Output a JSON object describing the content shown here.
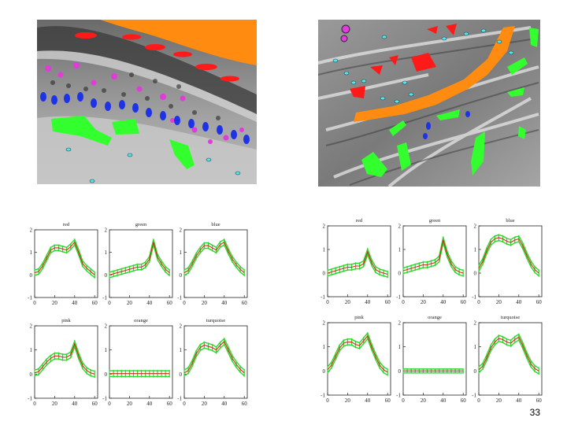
{
  "page": {
    "number": "33"
  },
  "figures": {
    "left_micrograph": {
      "label_colors": [
        "red",
        "pink",
        "blue",
        "green",
        "turquoise",
        "orange"
      ]
    },
    "right_micrograph": {
      "label_colors": [
        "red",
        "pink",
        "blue",
        "green",
        "turquoise",
        "orange"
      ]
    }
  },
  "colors": {
    "red": "#ff1a1a",
    "pink": "#e23bdc",
    "blue": "#1f33e6",
    "green": "#33ff2e",
    "turquoise": "#56e6ea",
    "orange": "#ff8c10",
    "curve_mean": "#d42a1a",
    "curve_band": "#2dd62d"
  },
  "chart_data": [
    {
      "figure": "left",
      "type": "line",
      "title": "red",
      "x": [
        0,
        4,
        8,
        12,
        16,
        20,
        24,
        28,
        32,
        36,
        40,
        44,
        48,
        52,
        56,
        60
      ],
      "mean": [
        0.1,
        0.15,
        0.4,
        0.75,
        1.1,
        1.2,
        1.2,
        1.15,
        1.1,
        1.25,
        1.45,
        1.0,
        0.5,
        0.3,
        0.15,
        0.0
      ],
      "band": 0.12,
      "xlim": [
        0,
        63
      ],
      "ylim": [
        -1,
        2
      ],
      "xticks": [
        "0",
        "20",
        "40",
        "60"
      ],
      "yticks": [
        "-1",
        "0",
        "1",
        "2"
      ]
    },
    {
      "figure": "left",
      "type": "line",
      "title": "green",
      "x": [
        0,
        4,
        8,
        12,
        16,
        20,
        24,
        28,
        32,
        36,
        40,
        44,
        48,
        52,
        56,
        60
      ],
      "mean": [
        0.0,
        0.05,
        0.1,
        0.15,
        0.2,
        0.25,
        0.3,
        0.35,
        0.35,
        0.45,
        0.7,
        1.45,
        0.8,
        0.5,
        0.25,
        0.1
      ],
      "band": 0.12,
      "xlim": [
        0,
        63
      ],
      "ylim": [
        -1,
        2
      ],
      "xticks": [
        "0",
        "20",
        "40",
        "60"
      ],
      "yticks": [
        "-1",
        "0",
        "1",
        "2"
      ]
    },
    {
      "figure": "left",
      "type": "line",
      "title": "blue",
      "x": [
        0,
        4,
        8,
        12,
        16,
        20,
        24,
        28,
        32,
        36,
        40,
        44,
        48,
        52,
        56,
        60
      ],
      "mean": [
        0.1,
        0.2,
        0.5,
        0.85,
        1.1,
        1.3,
        1.3,
        1.2,
        1.1,
        1.35,
        1.45,
        1.05,
        0.7,
        0.45,
        0.25,
        0.1
      ],
      "band": 0.12,
      "xlim": [
        0,
        63
      ],
      "ylim": [
        -1,
        2
      ],
      "xticks": [
        "0",
        "20",
        "40",
        "60"
      ],
      "yticks": [
        "-1",
        "0",
        "1",
        "2"
      ]
    },
    {
      "figure": "left",
      "type": "line",
      "title": "pink",
      "x": [
        0,
        4,
        8,
        12,
        16,
        20,
        24,
        28,
        32,
        36,
        40,
        44,
        48,
        52,
        56,
        60
      ],
      "mean": [
        0.05,
        0.1,
        0.3,
        0.5,
        0.65,
        0.75,
        0.75,
        0.7,
        0.7,
        0.8,
        1.25,
        0.75,
        0.35,
        0.15,
        0.05,
        0.0
      ],
      "band": 0.12,
      "xlim": [
        0,
        63
      ],
      "ylim": [
        -1,
        2
      ],
      "xticks": [
        "0",
        "20",
        "40",
        "60"
      ],
      "yticks": [
        "-1",
        "0",
        "1",
        "2"
      ]
    },
    {
      "figure": "left",
      "type": "line",
      "title": "orange",
      "x": [
        0,
        4,
        8,
        12,
        16,
        20,
        24,
        28,
        32,
        36,
        40,
        44,
        48,
        52,
        56,
        60
      ],
      "mean": [
        0.02,
        0.02,
        0.02,
        0.02,
        0.02,
        0.02,
        0.02,
        0.02,
        0.02,
        0.02,
        0.02,
        0.02,
        0.02,
        0.02,
        0.02,
        0.02
      ],
      "band": 0.12,
      "xlim": [
        0,
        63
      ],
      "ylim": [
        -1,
        2
      ],
      "xticks": [
        "0",
        "20",
        "40",
        "60"
      ],
      "yticks": [
        "-1",
        "0",
        "1",
        "2"
      ]
    },
    {
      "figure": "left",
      "type": "line",
      "title": "turquoise",
      "x": [
        0,
        4,
        8,
        12,
        16,
        20,
        24,
        28,
        32,
        36,
        40,
        44,
        48,
        52,
        56,
        60
      ],
      "mean": [
        0.05,
        0.15,
        0.45,
        0.85,
        1.1,
        1.2,
        1.15,
        1.1,
        1.0,
        1.2,
        1.35,
        1.0,
        0.65,
        0.4,
        0.2,
        0.05
      ],
      "band": 0.12,
      "xlim": [
        0,
        63
      ],
      "ylim": [
        -1,
        2
      ],
      "xticks": [
        "0",
        "20",
        "40",
        "60"
      ],
      "yticks": [
        "-1",
        "0",
        "1",
        "2"
      ]
    },
    {
      "figure": "right",
      "type": "line",
      "title": "red",
      "x": [
        0,
        4,
        8,
        12,
        16,
        20,
        24,
        28,
        32,
        36,
        40,
        44,
        48,
        52,
        56,
        60
      ],
      "mean": [
        0.0,
        0.05,
        0.1,
        0.15,
        0.2,
        0.25,
        0.25,
        0.3,
        0.3,
        0.4,
        0.9,
        0.45,
        0.15,
        0.05,
        0.0,
        -0.05
      ],
      "band": 0.12,
      "xlim": [
        0,
        63
      ],
      "ylim": [
        -1,
        2
      ],
      "xticks": [
        "0",
        "20",
        "40",
        "60"
      ],
      "yticks": [
        "-1",
        "0",
        "1",
        "2"
      ]
    },
    {
      "figure": "right",
      "type": "line",
      "title": "green",
      "x": [
        0,
        4,
        8,
        12,
        16,
        20,
        24,
        28,
        32,
        36,
        40,
        44,
        48,
        52,
        56,
        60
      ],
      "mean": [
        0.1,
        0.15,
        0.2,
        0.25,
        0.3,
        0.35,
        0.35,
        0.4,
        0.45,
        0.6,
        1.4,
        0.8,
        0.4,
        0.15,
        0.05,
        0.0
      ],
      "band": 0.12,
      "xlim": [
        0,
        63
      ],
      "ylim": [
        -1,
        2
      ],
      "xticks": [
        "0",
        "20",
        "40",
        "60"
      ],
      "yticks": [
        "-1",
        "0",
        "1",
        "2"
      ]
    },
    {
      "figure": "right",
      "type": "line",
      "title": "blue",
      "x": [
        0,
        4,
        8,
        12,
        16,
        20,
        24,
        28,
        32,
        36,
        40,
        44,
        48,
        52,
        56,
        60
      ],
      "mean": [
        0.2,
        0.5,
        0.95,
        1.3,
        1.45,
        1.5,
        1.45,
        1.35,
        1.3,
        1.4,
        1.45,
        1.15,
        0.75,
        0.4,
        0.15,
        0.0
      ],
      "band": 0.12,
      "xlim": [
        0,
        63
      ],
      "ylim": [
        -1,
        2
      ],
      "xticks": [
        "0",
        "20",
        "40",
        "60"
      ],
      "yticks": [
        "-1",
        "0",
        "1",
        "2"
      ]
    },
    {
      "figure": "right",
      "type": "line",
      "title": "pink",
      "x": [
        0,
        4,
        8,
        12,
        16,
        20,
        24,
        28,
        32,
        36,
        40,
        44,
        48,
        52,
        56,
        60
      ],
      "mean": [
        0.05,
        0.25,
        0.6,
        0.95,
        1.15,
        1.2,
        1.2,
        1.1,
        1.05,
        1.25,
        1.45,
        1.0,
        0.6,
        0.25,
        0.05,
        -0.05
      ],
      "band": 0.12,
      "xlim": [
        0,
        63
      ],
      "ylim": [
        -1,
        2
      ],
      "xticks": [
        "0",
        "20",
        "40",
        "60"
      ],
      "yticks": [
        "-1",
        "0",
        "1",
        "2"
      ]
    },
    {
      "figure": "right",
      "type": "line",
      "title": "orange",
      "x": [
        0,
        4,
        8,
        12,
        16,
        20,
        24,
        28,
        32,
        36,
        40,
        44,
        48,
        52,
        56,
        60
      ],
      "mean": [
        0.0,
        0.0,
        0.0,
        0.0,
        0.0,
        0.0,
        0.0,
        0.0,
        0.0,
        0.0,
        0.0,
        0.0,
        0.0,
        0.0,
        0.0,
        0.0
      ],
      "band": 0.08,
      "xlim": [
        0,
        63
      ],
      "ylim": [
        -1,
        2
      ],
      "xticks": [
        "0",
        "20",
        "40",
        "60"
      ],
      "yticks": [
        "-1",
        "0",
        "1",
        "2"
      ]
    },
    {
      "figure": "right",
      "type": "line",
      "title": "turquoise",
      "x": [
        0,
        4,
        8,
        12,
        16,
        20,
        24,
        28,
        32,
        36,
        40,
        44,
        48,
        52,
        56,
        60
      ],
      "mean": [
        0.05,
        0.2,
        0.55,
        0.95,
        1.2,
        1.35,
        1.3,
        1.2,
        1.15,
        1.3,
        1.4,
        1.05,
        0.65,
        0.3,
        0.1,
        0.0
      ],
      "band": 0.12,
      "xlim": [
        0,
        63
      ],
      "ylim": [
        -1,
        2
      ],
      "xticks": [
        "0",
        "20",
        "40",
        "60"
      ],
      "yticks": [
        "-1",
        "0",
        "1",
        "2"
      ]
    }
  ]
}
